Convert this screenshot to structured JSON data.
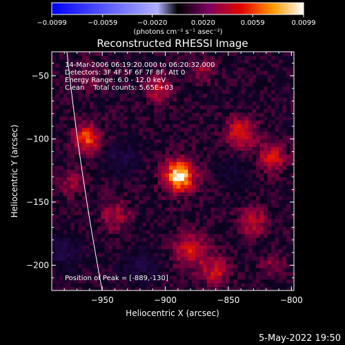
{
  "chart_data": {
    "type": "heatmap",
    "title": "Reconstructed RHESSI Image",
    "xlabel": "Heliocentric X (arcsec)",
    "ylabel": "Heliocentric Y (arcsec)",
    "xlim": [
      -990,
      -798
    ],
    "ylim": [
      -220,
      -31
    ],
    "x_ticks": [
      -950,
      -900,
      -850,
      -800
    ],
    "x_tick_labels": [
      "−950",
      "−900",
      "−850",
      "−800"
    ],
    "y_ticks": [
      -50,
      -100,
      -150,
      -200
    ],
    "y_tick_labels": [
      "−50",
      "−100",
      "−150",
      "−200"
    ],
    "colorbar": {
      "min": -0.0099,
      "max": 0.0099,
      "ticks": [
        -0.0099,
        -0.0059,
        -0.002,
        0.002,
        0.0059,
        0.0099
      ],
      "tick_labels": [
        "−0.0099",
        "−0.0059",
        "−0.0020",
        "0.0020",
        "0.0059",
        "0.0099"
      ],
      "unit_label": "(photons cm⁻² s⁻¹ asec⁻²)"
    },
    "annotations": [
      "14-Mar-2006 06:19:20.000 to 06:20:32.000",
      "Detectors: 3F 4F 5F 6F 7F 8F, Att 0",
      "Energy Range: 6.0 - 12.0 keV",
      "Clean    Total counts: 5.65E+03"
    ],
    "peak_label": "Position of Peak = [-889,-130]",
    "peak": {
      "x": -889,
      "y": -130
    },
    "sources": [
      {
        "x": -889,
        "y": -129,
        "amplitude": 0.0099,
        "sigma": 9
      },
      {
        "x": -962,
        "y": -99,
        "amplitude": 0.0065,
        "sigma": 8
      },
      {
        "x": -840,
        "y": -95,
        "amplitude": 0.0055,
        "sigma": 9
      },
      {
        "x": -815,
        "y": -115,
        "amplitude": 0.005,
        "sigma": 8
      },
      {
        "x": -880,
        "y": -188,
        "amplitude": 0.005,
        "sigma": 10
      },
      {
        "x": -860,
        "y": -205,
        "amplitude": 0.0045,
        "sigma": 8
      },
      {
        "x": -830,
        "y": -165,
        "amplitude": 0.004,
        "sigma": 9
      },
      {
        "x": -905,
        "y": -60,
        "amplitude": 0.004,
        "sigma": 8
      },
      {
        "x": -940,
        "y": -160,
        "amplitude": 0.0035,
        "sigma": 9
      },
      {
        "x": -975,
        "y": -135,
        "amplitude": 0.003,
        "sigma": 7
      },
      {
        "x": -870,
        "y": -45,
        "amplitude": 0.003,
        "sigma": 7
      },
      {
        "x": -960,
        "y": -50,
        "amplitude": 0.0025,
        "sigma": 8
      },
      {
        "x": -815,
        "y": -200,
        "amplitude": 0.0025,
        "sigma": 7
      },
      {
        "x": -980,
        "y": -190,
        "amplitude": -0.003,
        "sigma": 9
      },
      {
        "x": -935,
        "y": -115,
        "amplitude": -0.003,
        "sigma": 9
      },
      {
        "x": -920,
        "y": -200,
        "amplitude": -0.0025,
        "sigma": 10
      },
      {
        "x": -845,
        "y": -125,
        "amplitude": -0.002,
        "sigma": 8
      }
    ],
    "limb": [
      {
        "x": -978,
        "y": -31
      },
      {
        "x": -966,
        "y": -125
      },
      {
        "x": -950,
        "y": -220
      }
    ],
    "timestamp": "5-May-2022 19:50"
  }
}
